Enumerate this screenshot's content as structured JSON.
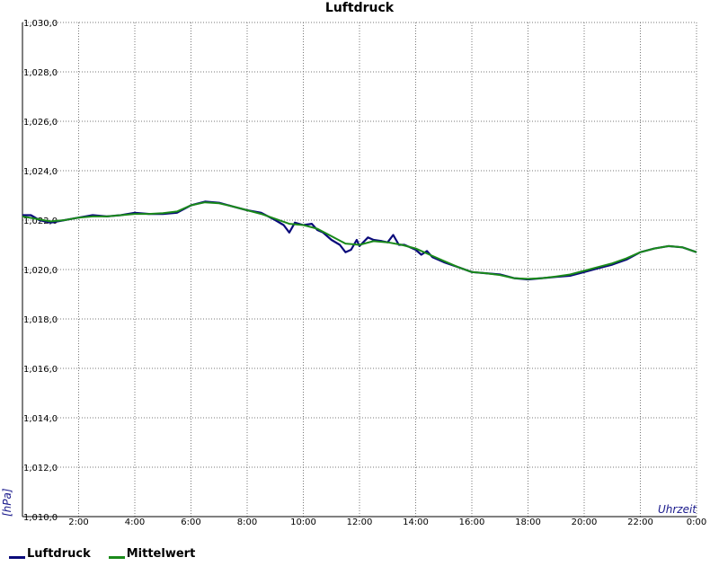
{
  "chart_data": {
    "type": "line",
    "title": "Luftdruck",
    "xlabel": "Uhrzeit",
    "ylabel": "[hPa]",
    "xlim": [
      0,
      24
    ],
    "ylim": [
      1010.0,
      1030.0
    ],
    "grid": true,
    "legend_position": "bottom-left",
    "x_ticks": [
      {
        "value": 2,
        "label": "2:00"
      },
      {
        "value": 4,
        "label": "4:00"
      },
      {
        "value": 6,
        "label": "6:00"
      },
      {
        "value": 8,
        "label": "8:00"
      },
      {
        "value": 10,
        "label": "10:00"
      },
      {
        "value": 12,
        "label": "12:00"
      },
      {
        "value": 14,
        "label": "14:00"
      },
      {
        "value": 16,
        "label": "16:00"
      },
      {
        "value": 18,
        "label": "18:00"
      },
      {
        "value": 20,
        "label": "20:00"
      },
      {
        "value": 22,
        "label": "22:00"
      },
      {
        "value": 24,
        "label": "0:00"
      }
    ],
    "y_ticks": [
      {
        "value": 1010,
        "label": "1,010,0"
      },
      {
        "value": 1012,
        "label": "1,012,0"
      },
      {
        "value": 1014,
        "label": "1,014,0"
      },
      {
        "value": 1016,
        "label": "1,016,0"
      },
      {
        "value": 1018,
        "label": "1,018,0"
      },
      {
        "value": 1020,
        "label": "1,020,0"
      },
      {
        "value": 1022,
        "label": "1,022,0"
      },
      {
        "value": 1024,
        "label": "1,024,0"
      },
      {
        "value": 1026,
        "label": "1,026,0"
      },
      {
        "value": 1028,
        "label": "1,028,0"
      },
      {
        "value": 1030,
        "label": "1,030,0"
      }
    ],
    "series": [
      {
        "name": "Luftdruck",
        "color": "#0a0a7a",
        "x": [
          0,
          0.3,
          0.6,
          1.0,
          1.5,
          2.0,
          2.5,
          3.0,
          3.5,
          4.0,
          4.5,
          5.0,
          5.5,
          6.0,
          6.5,
          7.0,
          7.5,
          8.0,
          8.5,
          9.0,
          9.3,
          9.5,
          9.7,
          10.0,
          10.3,
          10.5,
          10.7,
          11.0,
          11.3,
          11.5,
          11.7,
          11.9,
          12.0,
          12.3,
          12.5,
          12.8,
          13.0,
          13.2,
          13.4,
          13.6,
          13.8,
          14.0,
          14.2,
          14.4,
          14.6,
          14.8,
          15.0,
          15.5,
          16.0,
          16.5,
          17.0,
          17.5,
          18.0,
          18.5,
          19.0,
          19.5,
          20.0,
          20.5,
          21.0,
          21.5,
          22.0,
          22.5,
          23.0,
          23.5,
          24.0
        ],
        "y": [
          1022.2,
          1022.2,
          1022.0,
          1021.9,
          1022.0,
          1022.1,
          1022.2,
          1022.15,
          1022.2,
          1022.3,
          1022.25,
          1022.25,
          1022.3,
          1022.6,
          1022.75,
          1022.7,
          1022.55,
          1022.4,
          1022.3,
          1022.0,
          1021.8,
          1021.5,
          1021.9,
          1021.8,
          1021.85,
          1021.6,
          1021.5,
          1021.2,
          1021.0,
          1020.7,
          1020.8,
          1021.2,
          1020.95,
          1021.3,
          1021.2,
          1021.15,
          1021.1,
          1021.4,
          1021.0,
          1021.0,
          1020.9,
          1020.8,
          1020.6,
          1020.75,
          1020.5,
          1020.4,
          1020.3,
          1020.1,
          1019.9,
          1019.85,
          1019.8,
          1019.65,
          1019.6,
          1019.65,
          1019.7,
          1019.75,
          1019.9,
          1020.05,
          1020.2,
          1020.4,
          1020.7,
          1020.85,
          1020.95,
          1020.9,
          1020.7
        ]
      },
      {
        "name": "Mittelwert",
        "color": "#1a8a1a",
        "x": [
          0,
          0.5,
          1.0,
          1.5,
          2.0,
          2.5,
          3.0,
          3.5,
          4.0,
          4.5,
          5.0,
          5.5,
          6.0,
          6.5,
          7.0,
          7.5,
          8.0,
          8.5,
          9.0,
          9.5,
          10.0,
          10.5,
          11.0,
          11.5,
          12.0,
          12.5,
          13.0,
          13.5,
          14.0,
          14.5,
          15.0,
          15.5,
          16.0,
          16.5,
          17.0,
          17.5,
          18.0,
          18.5,
          19.0,
          19.5,
          20.0,
          20.5,
          21.0,
          21.5,
          22.0,
          22.5,
          23.0,
          23.5,
          24.0
        ],
        "y": [
          1022.15,
          1022.05,
          1021.95,
          1022.0,
          1022.1,
          1022.15,
          1022.15,
          1022.2,
          1022.25,
          1022.25,
          1022.28,
          1022.35,
          1022.6,
          1022.72,
          1022.68,
          1022.55,
          1022.4,
          1022.25,
          1022.05,
          1021.85,
          1021.8,
          1021.65,
          1021.35,
          1021.05,
          1021.0,
          1021.15,
          1021.1,
          1021.0,
          1020.85,
          1020.6,
          1020.35,
          1020.1,
          1019.9,
          1019.85,
          1019.78,
          1019.65,
          1019.62,
          1019.65,
          1019.72,
          1019.8,
          1019.95,
          1020.1,
          1020.25,
          1020.45,
          1020.7,
          1020.85,
          1020.95,
          1020.9,
          1020.7
        ]
      }
    ]
  }
}
